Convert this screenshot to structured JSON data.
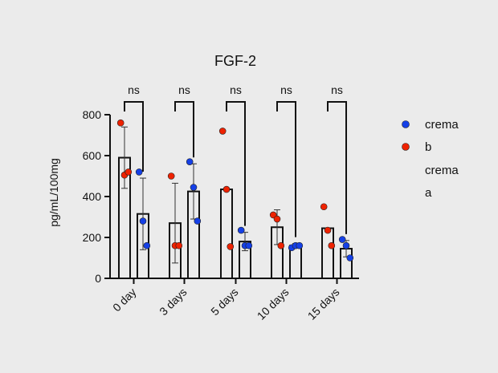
{
  "chart_data": {
    "type": "bar",
    "title": "FGF-2",
    "ylabel": "pg/mL/100mg",
    "xlabel": "",
    "ylim": [
      0,
      800
    ],
    "yticks": [
      0,
      200,
      400,
      600,
      800
    ],
    "categories": [
      "0 day",
      "3 days",
      "5 days",
      "10 days",
      "15 days"
    ],
    "significance": [
      "ns",
      "ns",
      "ns",
      "ns",
      "ns"
    ],
    "series": [
      {
        "key": "b",
        "color": "#ee2200",
        "means": [
          590,
          270,
          435,
          250,
          245
        ],
        "sd": [
          150,
          195,
          0,
          85,
          0
        ],
        "points": [
          [
            760,
            505,
            520
          ],
          [
            500,
            160,
            160
          ],
          [
            720,
            435,
            155
          ],
          [
            310,
            290,
            160
          ],
          [
            350,
            235,
            160
          ]
        ]
      },
      {
        "key": "a",
        "color": "#1540e6",
        "means": [
          315,
          425,
          180,
          160,
          145
        ],
        "sd": [
          175,
          135,
          45,
          10,
          40
        ],
        "points": [
          [
            520,
            280,
            160
          ],
          [
            570,
            445,
            280
          ],
          [
            235,
            160,
            160
          ],
          [
            150,
            160,
            160
          ],
          [
            190,
            160,
            100
          ]
        ]
      }
    ],
    "legend": {
      "position": "right",
      "lines": [
        "crema",
        "b",
        "crema",
        "a"
      ]
    }
  }
}
